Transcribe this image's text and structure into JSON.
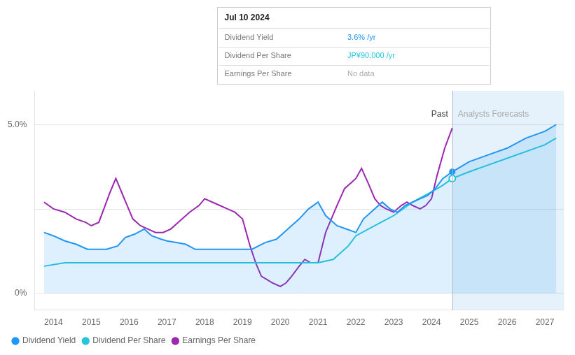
{
  "chart_data": {
    "type": "line",
    "xlim": [
      2013.5,
      2027.5
    ],
    "ylim": [
      -0.005,
      0.06
    ],
    "xticks": [
      2014,
      2015,
      2016,
      2017,
      2018,
      2019,
      2020,
      2021,
      2022,
      2023,
      2024,
      2025,
      2026,
      2027
    ],
    "yticks": [
      {
        "value": 0.0,
        "label": "0%"
      },
      {
        "value": 0.05,
        "label": "5.0%"
      }
    ],
    "hlines": [
      0.0,
      0.025,
      0.05
    ],
    "vlines": [
      2024.55
    ],
    "shaded_span": {
      "from": 2024.55,
      "to": 2027.5,
      "color": "#d0e8f8"
    },
    "legend": "lower left",
    "series": [
      {
        "name": "Dividend Yield",
        "color": "#2196f3",
        "type": "area",
        "x": [
          2013.75,
          2014.0,
          2014.3,
          2014.6,
          2014.9,
          2015.1,
          2015.4,
          2015.7,
          2015.9,
          2016.15,
          2016.4,
          2016.6,
          2016.85,
          2017.0,
          2017.25,
          2017.5,
          2017.75,
          2018.0,
          2018.25,
          2018.5,
          2018.75,
          2019.0,
          2019.25,
          2019.6,
          2019.9,
          2020.2,
          2020.5,
          2020.75,
          2021.0,
          2021.2,
          2021.5,
          2021.75,
          2022.0,
          2022.2,
          2022.5,
          2022.7,
          2022.9,
          2023.1,
          2023.3,
          2023.5,
          2023.7,
          2023.9,
          2024.1,
          2024.3,
          2024.55,
          2024.55,
          2025.0,
          2025.5,
          2026.0,
          2026.5,
          2027.0,
          2027.3
        ],
        "values": [
          0.018,
          0.017,
          0.0155,
          0.0145,
          0.013,
          0.013,
          0.013,
          0.014,
          0.0165,
          0.0175,
          0.019,
          0.017,
          0.016,
          0.0155,
          0.015,
          0.0145,
          0.013,
          0.013,
          0.013,
          0.013,
          0.013,
          0.013,
          0.013,
          0.015,
          0.016,
          0.019,
          0.022,
          0.025,
          0.027,
          0.023,
          0.02,
          0.019,
          0.018,
          0.022,
          0.025,
          0.027,
          0.025,
          0.024,
          0.026,
          0.027,
          0.028,
          0.029,
          0.031,
          0.034,
          0.036,
          0.036,
          0.039,
          0.041,
          0.043,
          0.046,
          0.048,
          0.05
        ]
      },
      {
        "name": "Dividend Per Share",
        "color": "#26c6da",
        "type": "line",
        "x": [
          2013.75,
          2014.3,
          2015.0,
          2015.5,
          2016.0,
          2016.5,
          2017.0,
          2017.5,
          2018.0,
          2018.5,
          2019.0,
          2019.5,
          2019.85,
          2020.0,
          2020.5,
          2021.0,
          2021.4,
          2021.8,
          2022.0,
          2022.5,
          2023.0,
          2023.5,
          2024.0,
          2024.3,
          2024.55,
          2024.55,
          2025.0,
          2025.5,
          2026.0,
          2026.5,
          2027.0,
          2027.3
        ],
        "values": [
          0.008,
          0.009,
          0.009,
          0.009,
          0.009,
          0.009,
          0.009,
          0.009,
          0.009,
          0.009,
          0.009,
          0.009,
          0.009,
          0.009,
          0.009,
          0.009,
          0.01,
          0.014,
          0.017,
          0.02,
          0.023,
          0.027,
          0.03,
          0.032,
          0.034,
          0.034,
          0.036,
          0.038,
          0.04,
          0.042,
          0.044,
          0.046
        ]
      },
      {
        "name": "Earnings Per Share",
        "color": "#9c27b0",
        "type": "line",
        "x": [
          2013.75,
          2014.0,
          2014.3,
          2014.6,
          2014.85,
          2015.0,
          2015.2,
          2015.5,
          2015.65,
          2015.8,
          2015.95,
          2016.1,
          2016.3,
          2016.5,
          2016.7,
          2016.9,
          2017.1,
          2017.3,
          2017.6,
          2017.85,
          2018.0,
          2018.2,
          2018.4,
          2018.6,
          2018.8,
          2019.0,
          2019.1,
          2019.2,
          2019.35,
          2019.5,
          2019.65,
          2019.8,
          2020.0,
          2020.15,
          2020.3,
          2020.5,
          2020.65,
          2020.8,
          2021.0,
          2021.2,
          2021.5,
          2021.7,
          2021.9,
          2022.0,
          2022.15,
          2022.35,
          2022.5,
          2022.65,
          2022.8,
          2023.0,
          2023.2,
          2023.35,
          2023.5,
          2023.7,
          2023.85,
          2024.0,
          2024.15,
          2024.35,
          2024.55
        ],
        "values": [
          0.027,
          0.025,
          0.024,
          0.022,
          0.021,
          0.02,
          0.021,
          0.03,
          0.034,
          0.03,
          0.026,
          0.022,
          0.02,
          0.019,
          0.018,
          0.018,
          0.019,
          0.021,
          0.024,
          0.026,
          0.028,
          0.027,
          0.026,
          0.025,
          0.024,
          0.022,
          0.018,
          0.014,
          0.009,
          0.005,
          0.004,
          0.003,
          0.002,
          0.003,
          0.005,
          0.008,
          0.01,
          0.009,
          0.009,
          0.018,
          0.026,
          0.031,
          0.033,
          0.034,
          0.037,
          0.032,
          0.028,
          0.026,
          0.025,
          0.024,
          0.026,
          0.027,
          0.026,
          0.025,
          0.026,
          0.028,
          0.035,
          0.043,
          0.049
        ]
      }
    ],
    "markers": [
      {
        "x": 2024.55,
        "y": 0.036,
        "series": "Dividend Yield",
        "marker": "filled"
      },
      {
        "x": 2024.55,
        "y": 0.034,
        "series": "Dividend Per Share",
        "marker": "hollow"
      }
    ],
    "annotations": [
      {
        "text": "Past",
        "x": 2024.55,
        "y": 0.053,
        "align": "right",
        "color": "#444444"
      },
      {
        "text": "Analysts Forecasts",
        "x": 2024.55,
        "y": 0.053,
        "align": "left",
        "color": "#aaaaaa"
      }
    ],
    "tooltip": {
      "title": "Jul 10 2024",
      "rows": [
        {
          "label": "Dividend Yield",
          "value": "3.6% /yr",
          "color": "#2196f3"
        },
        {
          "label": "Dividend Per Share",
          "value": "JP¥90,000 /yr",
          "color": "#26c6da"
        },
        {
          "label": "Earnings Per Share",
          "value": "No data",
          "color": "#aaaaaa"
        }
      ]
    }
  }
}
